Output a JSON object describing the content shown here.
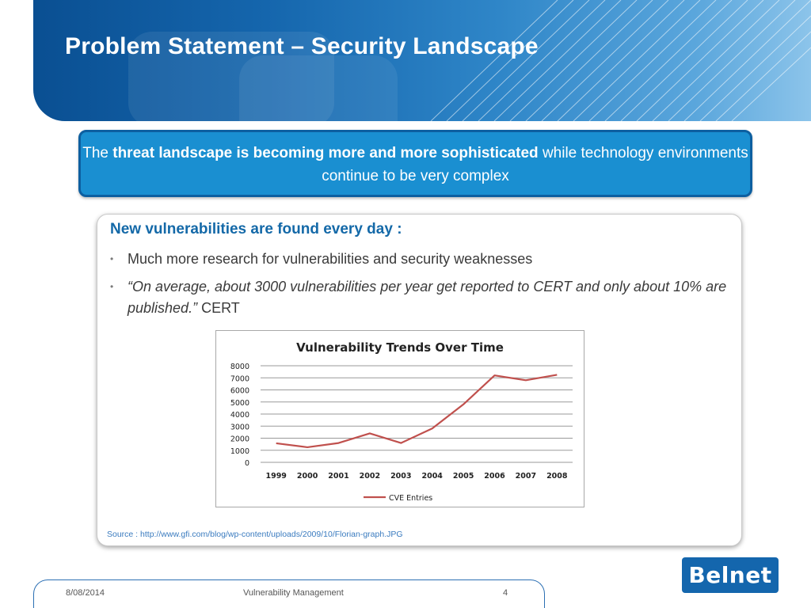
{
  "slide": {
    "title": "Problem Statement – Security Landscape"
  },
  "callout": {
    "part1": "The ",
    "bold": "threat landscape is becoming more and more sophisticated",
    "part2": " while technology environments continue to be very complex"
  },
  "panel": {
    "heading": "New vulnerabilities are found every day :",
    "bullet1": "Much more research for vulnerabilities and security weaknesses",
    "bullet2_quote": "“On average, about 3000 vulnerabilities per year get reported to CERT and only about 10% are published.”",
    "bullet2_attrib": " CERT",
    "source": "Source : http://www.gfi.com/blog/wp-content/uploads/2009/10/Florian-graph.JPG"
  },
  "chart_data": {
    "type": "line",
    "title": "Vulnerability Trends Over Time",
    "x": [
      "1999",
      "2000",
      "2001",
      "2002",
      "2003",
      "2004",
      "2005",
      "2006",
      "2007",
      "2008"
    ],
    "series": [
      {
        "name": "CVE Entries",
        "values": [
          1580,
          1250,
          1600,
          2400,
          1600,
          2800,
          4800,
          7200,
          6800,
          7250
        ],
        "color": "#c0504d"
      }
    ],
    "yticks": [
      "0",
      "1000",
      "2000",
      "3000",
      "4000",
      "5000",
      "6000",
      "7000",
      "8000"
    ],
    "ylim": [
      0,
      8000
    ],
    "grid": true,
    "legend": "bottom"
  },
  "footer": {
    "date": "8/08/2014",
    "center": "Vulnerability Management",
    "page": "4"
  },
  "logo": {
    "text": "Belnet"
  },
  "colors": {
    "accent": "#1a8fd1",
    "heading": "#1469a8",
    "brand": "#1466ad"
  }
}
